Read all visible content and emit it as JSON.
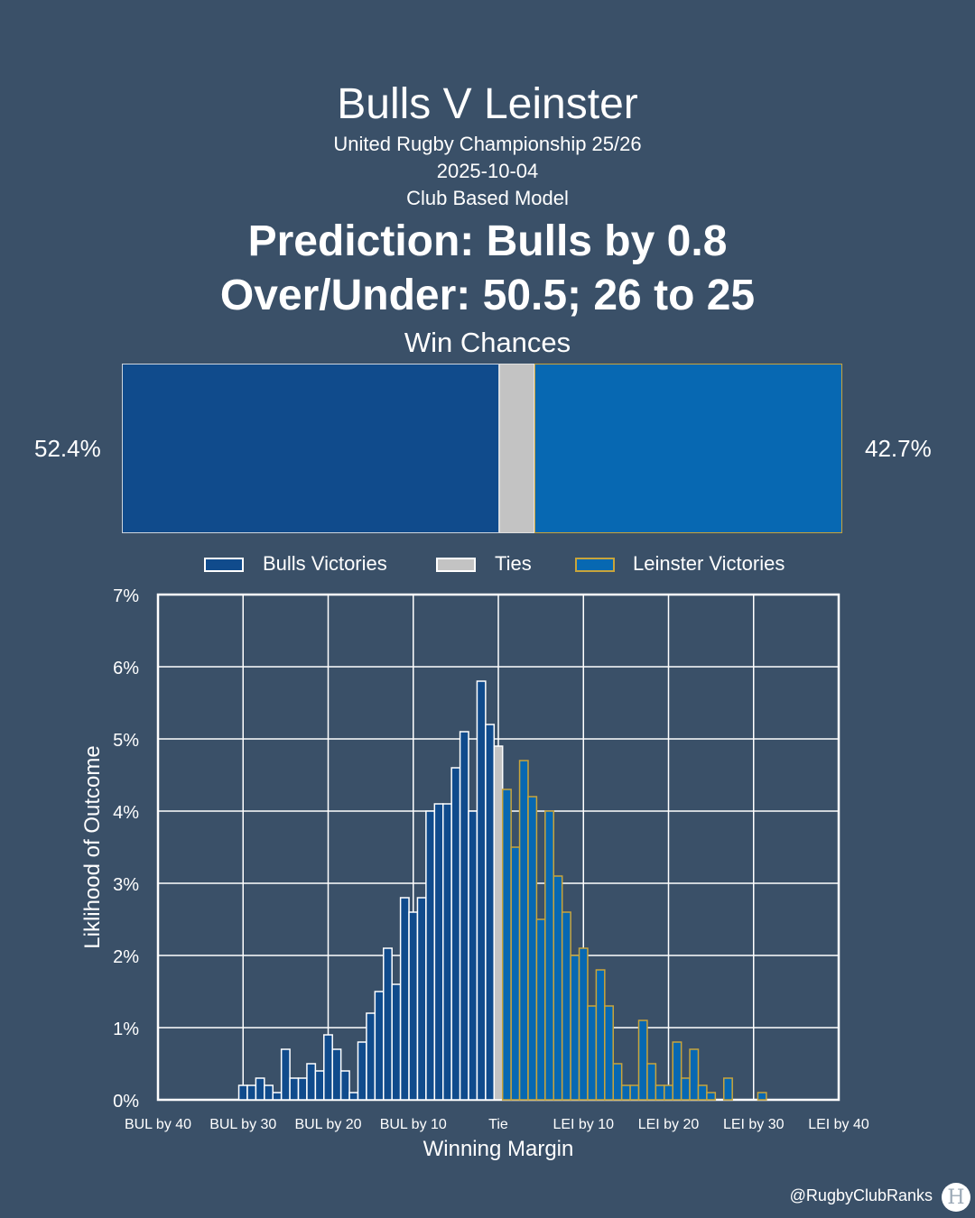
{
  "header": {
    "title": "Bulls V Leinster",
    "competition": "United Rugby Championship 25/26",
    "date": "2025-10-04",
    "model": "Club Based Model",
    "prediction": "Prediction: Bulls by 0.8",
    "over_under": "Over/Under: 50.5; 26 to 25"
  },
  "win_chances": {
    "title": "Win Chances",
    "bulls_label": "52.4%",
    "leinster_label": "42.7%",
    "bulls": 52.4,
    "ties": 4.9,
    "leinster": 42.7
  },
  "legend": {
    "bulls": "Bulls Victories",
    "ties": "Ties",
    "leinster": "Leinster Victories"
  },
  "colors": {
    "background": "#3a5068",
    "bulls": "#104b8c",
    "ties": "#c3c3c3",
    "leinster": "#0768b2",
    "leinster_edge": "#c9a43a"
  },
  "chart_data": {
    "type": "bar",
    "xlabel": "Winning Margin",
    "ylabel": "Liklihood of Outcome",
    "x_tick_labels": [
      "BUL by 40",
      "BUL by 30",
      "BUL by 20",
      "BUL by 10",
      "Tie",
      "LEI by 10",
      "LEI by 20",
      "LEI by 30",
      "LEI by 40"
    ],
    "y_tick_labels": [
      "0%",
      "1%",
      "2%",
      "3%",
      "4%",
      "5%",
      "6%",
      "7%"
    ],
    "ylim": [
      0,
      7
    ],
    "xlim": [
      -40,
      40
    ],
    "grid": true,
    "legend_position": "top",
    "series": [
      {
        "name": "Bulls Victories",
        "margins": [
          -30,
          -29,
          -28,
          -27,
          -26,
          -25,
          -24,
          -23,
          -22,
          -21,
          -20,
          -19,
          -18,
          -17,
          -16,
          -15,
          -14,
          -13,
          -12,
          -11,
          -10,
          -9,
          -8,
          -7,
          -6,
          -5,
          -4,
          -3,
          -2,
          -1
        ],
        "values": [
          0.2,
          0.2,
          0.3,
          0.2,
          0.1,
          0.7,
          0.3,
          0.3,
          0.5,
          0.4,
          0.9,
          0.7,
          0.4,
          0.1,
          0.8,
          1.2,
          1.5,
          2.1,
          1.6,
          2.8,
          2.6,
          2.8,
          4.0,
          4.1,
          4.1,
          4.6,
          5.1,
          4.0,
          5.8,
          5.2
        ]
      },
      {
        "name": "Ties",
        "margins": [
          0
        ],
        "values": [
          4.9
        ]
      },
      {
        "name": "Leinster Victories",
        "margins": [
          1,
          2,
          3,
          4,
          5,
          6,
          7,
          8,
          9,
          10,
          11,
          12,
          13,
          14,
          15,
          16,
          17,
          18,
          19,
          20,
          21,
          22,
          23,
          24,
          25,
          26,
          27,
          28,
          29,
          30,
          31,
          32,
          33,
          34,
          35
        ],
        "values": [
          4.3,
          3.5,
          4.7,
          4.2,
          2.5,
          4.0,
          3.1,
          2.6,
          2.0,
          2.1,
          1.3,
          1.8,
          1.3,
          0.5,
          0.2,
          0.2,
          1.1,
          0.5,
          0.2,
          0.2,
          0.8,
          0.3,
          0.7,
          0.2,
          0.1,
          0.0,
          0.3,
          0.0,
          0.0,
          0.0,
          0.1,
          0.0,
          0.0,
          0.0,
          0.0
        ]
      }
    ]
  },
  "credit": "@RugbyClubRanks"
}
